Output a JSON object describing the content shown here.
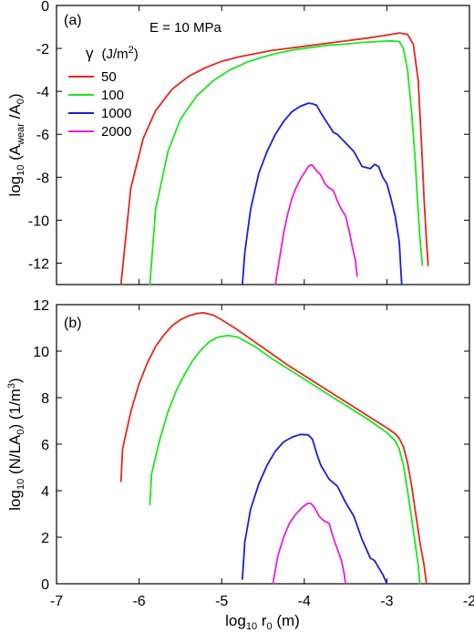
{
  "chart_data": [
    {
      "type": "line",
      "panel_label": "(a)",
      "annotation": "E = 10 MPa",
      "legend_title": "γ  (J/m²)",
      "legend_placement": "upper-left",
      "xlim": [
        -7,
        -2
      ],
      "ylim": [
        -13,
        0
      ],
      "yticks": [
        "0",
        "-2",
        "-4",
        "-6",
        "-8",
        "-10",
        "-12"
      ],
      "ylabel_parts": {
        "pre": "log",
        "sub": "10",
        "mid": " (A",
        "sub2": "wear",
        "post": " /A",
        "sub3": "0",
        "end": ")"
      },
      "series": [
        {
          "name": "50",
          "color": "#e8261e",
          "x": [
            -6.22,
            -6.1,
            -5.95,
            -5.8,
            -5.6,
            -5.4,
            -5.2,
            -5.0,
            -4.8,
            -4.6,
            -4.4,
            -4.2,
            -4.0,
            -3.8,
            -3.6,
            -3.4,
            -3.2,
            -3.0,
            -2.85,
            -2.75,
            -2.68,
            -2.62,
            -2.58,
            -2.55,
            -2.52,
            -2.5
          ],
          "y": [
            -13,
            -8.5,
            -6.2,
            -4.9,
            -3.9,
            -3.3,
            -2.9,
            -2.6,
            -2.4,
            -2.25,
            -2.1,
            -2.0,
            -1.9,
            -1.8,
            -1.7,
            -1.6,
            -1.5,
            -1.38,
            -1.28,
            -1.35,
            -1.8,
            -3.5,
            -6.5,
            -9.0,
            -11.0,
            -12.1
          ]
        },
        {
          "name": "100",
          "color": "#1ee61e",
          "x": [
            -5.87,
            -5.8,
            -5.65,
            -5.5,
            -5.3,
            -5.1,
            -4.9,
            -4.7,
            -4.5,
            -4.3,
            -4.1,
            -3.9,
            -3.7,
            -3.5,
            -3.3,
            -3.1,
            -2.95,
            -2.85,
            -2.8,
            -2.75,
            -2.7,
            -2.66,
            -2.63,
            -2.6,
            -2.57
          ],
          "y": [
            -13,
            -9.5,
            -6.8,
            -5.3,
            -4.2,
            -3.5,
            -3.0,
            -2.65,
            -2.4,
            -2.2,
            -2.05,
            -1.95,
            -1.85,
            -1.8,
            -1.72,
            -1.68,
            -1.65,
            -1.68,
            -2.0,
            -3.0,
            -5.0,
            -7.0,
            -9.0,
            -10.8,
            -12.1
          ]
        },
        {
          "name": "1000",
          "color": "#1a1fd6",
          "x": [
            -4.75,
            -4.72,
            -4.65,
            -4.55,
            -4.45,
            -4.35,
            -4.25,
            -4.15,
            -4.05,
            -3.95,
            -3.9,
            -3.85,
            -3.8,
            -3.75,
            -3.7,
            -3.65,
            -3.6,
            -3.5,
            -3.4,
            -3.3,
            -3.2,
            -3.15,
            -3.1,
            -3.05,
            -3.0,
            -2.95,
            -2.9,
            -2.85,
            -2.82
          ],
          "y": [
            -13,
            -11.5,
            -9.5,
            -7.8,
            -6.8,
            -6.0,
            -5.4,
            -4.95,
            -4.7,
            -4.55,
            -4.58,
            -4.65,
            -5.0,
            -5.3,
            -5.6,
            -5.9,
            -6.0,
            -6.4,
            -6.8,
            -7.5,
            -7.6,
            -7.4,
            -7.5,
            -8.0,
            -8.3,
            -9.0,
            -9.8,
            -11.0,
            -13.0
          ]
        },
        {
          "name": "2000",
          "color": "#e81ee0",
          "x": [
            -4.35,
            -4.3,
            -4.25,
            -4.2,
            -4.15,
            -4.1,
            -4.05,
            -4.0,
            -3.95,
            -3.92,
            -3.9,
            -3.85,
            -3.8,
            -3.75,
            -3.7,
            -3.65,
            -3.6,
            -3.55,
            -3.5,
            -3.45,
            -3.42,
            -3.38,
            -3.36
          ],
          "y": [
            -13,
            -11.8,
            -10.6,
            -9.7,
            -9.0,
            -8.5,
            -8.1,
            -7.8,
            -7.5,
            -7.42,
            -7.45,
            -7.7,
            -7.9,
            -8.3,
            -8.5,
            -8.6,
            -9.1,
            -9.5,
            -9.8,
            -10.6,
            -11.2,
            -11.9,
            -12.6
          ]
        }
      ]
    },
    {
      "type": "line",
      "panel_label": "(b)",
      "xlim": [
        -7,
        -2
      ],
      "ylim": [
        0,
        12
      ],
      "xticks": [
        "-7",
        "-6",
        "-5",
        "-4",
        "-3",
        "-2"
      ],
      "yticks": [
        "12",
        "10",
        "8",
        "6",
        "4",
        "2",
        "0"
      ],
      "xlabel_parts": {
        "pre": "log",
        "sub": "10",
        "mid": " r",
        "sub2": "0",
        "post": "  (m)"
      },
      "ylabel_parts": {
        "pre": "log",
        "sub": "10",
        "mid": " (N/LA",
        "sub2": "0",
        "post": ")  (1/m",
        "sup": "3",
        "end": ")"
      },
      "series": [
        {
          "name": "50",
          "color": "#e8261e",
          "x": [
            -6.22,
            -6.2,
            -6.1,
            -6.0,
            -5.9,
            -5.8,
            -5.7,
            -5.6,
            -5.5,
            -5.4,
            -5.3,
            -5.22,
            -5.1,
            -5.0,
            -4.8,
            -4.6,
            -4.4,
            -4.2,
            -4.0,
            -3.8,
            -3.6,
            -3.4,
            -3.2,
            -3.0,
            -2.9,
            -2.85,
            -2.8,
            -2.75,
            -2.7,
            -2.65,
            -2.6,
            -2.55,
            -2.52
          ],
          "y": [
            4.4,
            5.8,
            7.4,
            8.6,
            9.5,
            10.2,
            10.7,
            11.1,
            11.35,
            11.52,
            11.62,
            11.65,
            11.55,
            11.35,
            10.9,
            10.4,
            9.9,
            9.4,
            8.95,
            8.5,
            8.05,
            7.6,
            7.15,
            6.7,
            6.45,
            6.25,
            5.9,
            5.2,
            4.2,
            3.0,
            1.8,
            0.8,
            0.0
          ]
        },
        {
          "name": "100",
          "color": "#1ee61e",
          "x": [
            -5.87,
            -5.85,
            -5.75,
            -5.65,
            -5.55,
            -5.45,
            -5.35,
            -5.25,
            -5.15,
            -5.05,
            -4.92,
            -4.8,
            -4.6,
            -4.4,
            -4.2,
            -4.0,
            -3.8,
            -3.6,
            -3.4,
            -3.2,
            -3.0,
            -2.9,
            -2.85,
            -2.8,
            -2.75,
            -2.7,
            -2.66,
            -2.62,
            -2.6
          ],
          "y": [
            3.4,
            4.7,
            6.2,
            7.4,
            8.3,
            9.0,
            9.6,
            10.05,
            10.4,
            10.6,
            10.68,
            10.6,
            10.2,
            9.7,
            9.25,
            8.8,
            8.35,
            7.9,
            7.45,
            7.0,
            6.5,
            6.15,
            5.8,
            5.1,
            4.0,
            2.8,
            1.8,
            0.8,
            0.0
          ]
        },
        {
          "name": "1000",
          "color": "#1a1fd6",
          "x": [
            -4.75,
            -4.72,
            -4.65,
            -4.55,
            -4.45,
            -4.35,
            -4.25,
            -4.15,
            -4.05,
            -3.95,
            -3.9,
            -3.85,
            -3.8,
            -3.75,
            -3.7,
            -3.6,
            -3.5,
            -3.4,
            -3.3,
            -3.25,
            -3.2,
            -3.15,
            -3.1,
            -3.05,
            -3.0
          ],
          "y": [
            0.2,
            1.8,
            3.2,
            4.3,
            5.1,
            5.7,
            6.1,
            6.3,
            6.42,
            6.4,
            6.2,
            5.6,
            5.1,
            4.8,
            4.5,
            4.2,
            3.5,
            2.9,
            1.9,
            1.5,
            1.1,
            1.0,
            0.7,
            0.4,
            0.0
          ]
        },
        {
          "name": "2000",
          "color": "#e81ee0",
          "x": [
            -4.38,
            -4.32,
            -4.25,
            -4.18,
            -4.1,
            -4.02,
            -3.96,
            -3.92,
            -3.88,
            -3.82,
            -3.76,
            -3.7,
            -3.65,
            -3.6,
            -3.55,
            -3.52,
            -3.5
          ],
          "y": [
            0.0,
            1.2,
            2.0,
            2.6,
            3.0,
            3.3,
            3.45,
            3.45,
            3.3,
            2.9,
            2.7,
            2.6,
            2.0,
            1.5,
            1.0,
            0.5,
            0.0
          ]
        }
      ]
    }
  ]
}
